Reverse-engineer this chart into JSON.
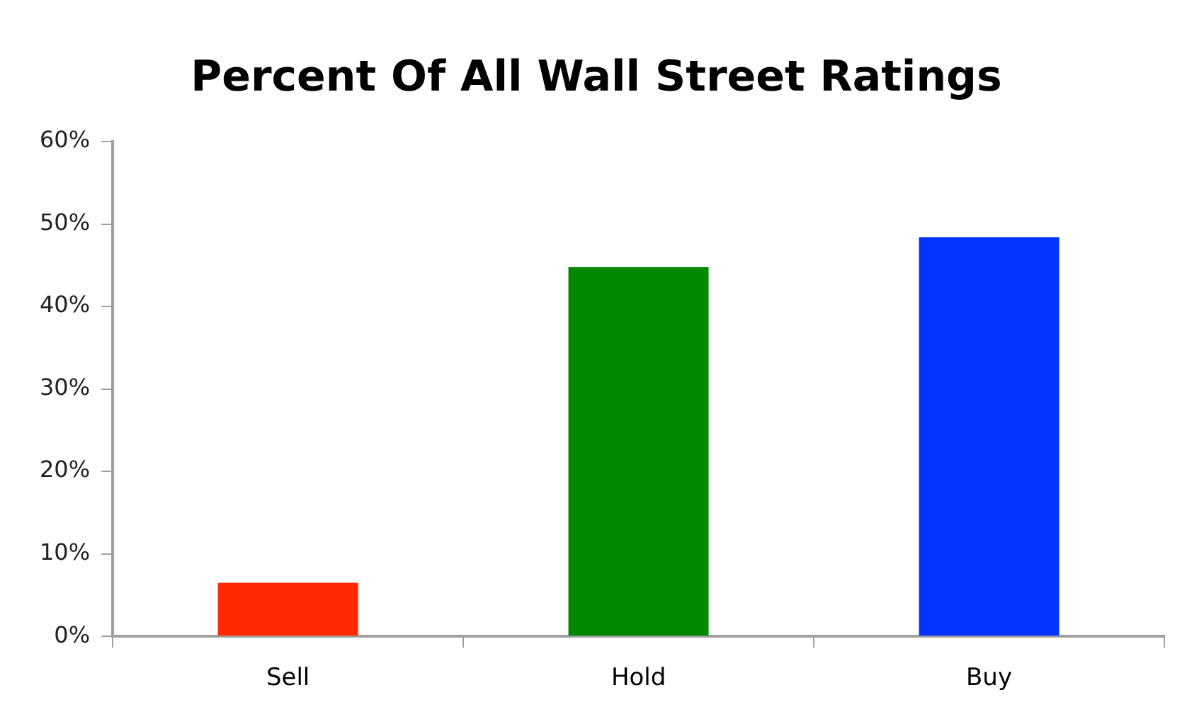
{
  "chart_data": {
    "type": "bar",
    "title": "Percent Of All Wall Street Ratings",
    "categories": [
      "Sell",
      "Hold",
      "Buy"
    ],
    "values": [
      6.5,
      44.8,
      48.4
    ],
    "colors": [
      "#ff2a00",
      "#008800",
      "#0433ff"
    ],
    "ylim": [
      0,
      60
    ],
    "yticks": [
      {
        "value": 0,
        "label": "0%"
      },
      {
        "value": 10,
        "label": "10%"
      },
      {
        "value": 20,
        "label": "20%"
      },
      {
        "value": 30,
        "label": "30%"
      },
      {
        "value": 40,
        "label": "40%"
      },
      {
        "value": 50,
        "label": "50%"
      },
      {
        "value": 60,
        "label": "60%"
      }
    ],
    "grid": false,
    "legend": false
  }
}
